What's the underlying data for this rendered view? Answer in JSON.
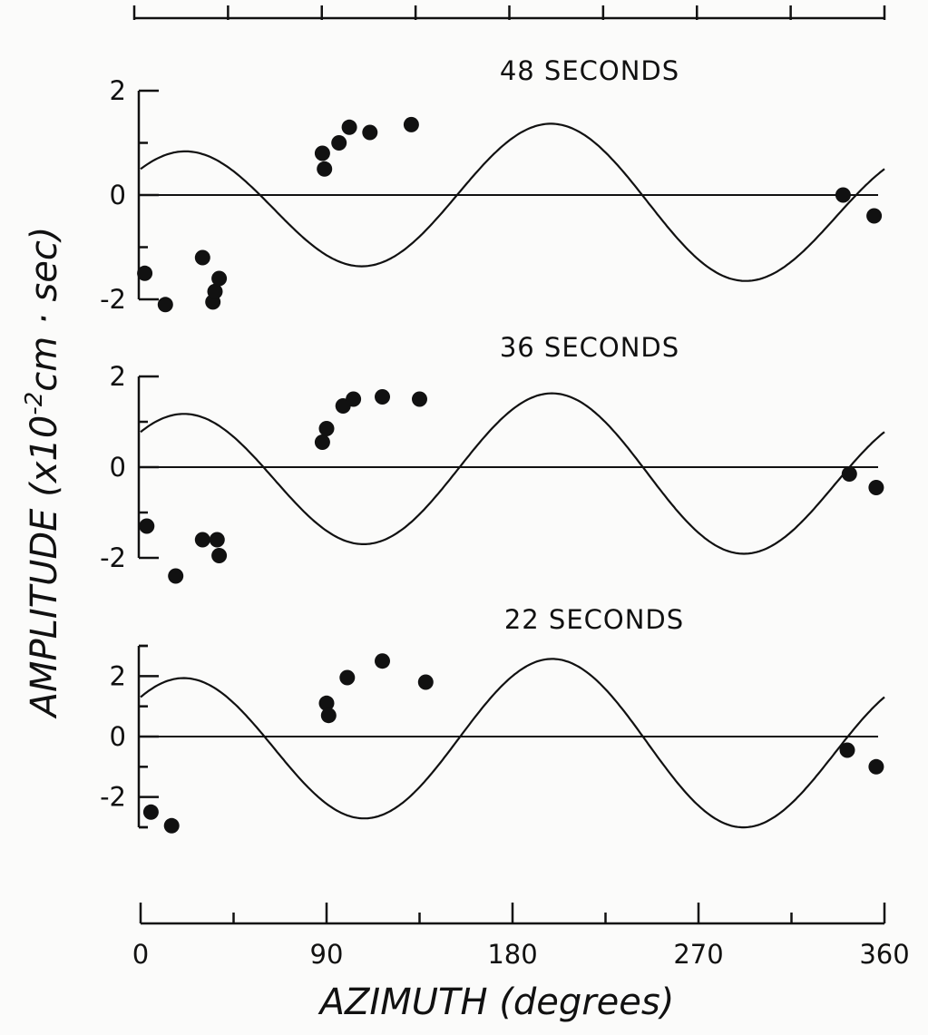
{
  "chart_data": [
    {
      "type": "scatter",
      "title": "48 SECONDS",
      "ylabel": "AMPLITUDE (x10^-2 cm · sec)",
      "xlabel": "AZIMUTH (degrees)",
      "xlim": [
        0,
        360
      ],
      "ylim": [
        -2,
        2
      ],
      "yticks": [
        "2",
        "0",
        "-2"
      ],
      "points": [
        [
          2,
          -1.5
        ],
        [
          12,
          -2.1
        ],
        [
          30,
          -1.2
        ],
        [
          35,
          -2.05
        ],
        [
          36,
          -1.85
        ],
        [
          38,
          -1.6
        ],
        [
          88,
          0.8
        ],
        [
          89,
          0.5
        ],
        [
          96,
          1.0
        ],
        [
          101,
          1.3
        ],
        [
          111,
          1.2
        ],
        [
          131,
          1.35
        ],
        [
          340,
          0.0
        ],
        [
          355,
          -0.4
        ]
      ],
      "fit_curve": {
        "mean": -0.2,
        "amplitude_1": 1.3,
        "phase_1_deg": 20,
        "amplitude_2": 0.3,
        "phase_2_deg": 82
      },
      "zero_line": true
    },
    {
      "type": "scatter",
      "title": "36 SECONDS",
      "xlim": [
        0,
        360
      ],
      "ylim": [
        -2,
        2
      ],
      "yticks": [
        "2",
        "0",
        "-2"
      ],
      "points": [
        [
          3,
          -1.3
        ],
        [
          17,
          -2.4
        ],
        [
          30,
          -1.6
        ],
        [
          37,
          -1.6
        ],
        [
          38,
          -1.95
        ],
        [
          88,
          0.55
        ],
        [
          90,
          0.85
        ],
        [
          98,
          1.35
        ],
        [
          103,
          1.5
        ],
        [
          117,
          1.55
        ],
        [
          135,
          1.5
        ],
        [
          343,
          -0.15
        ],
        [
          356,
          -0.45
        ]
      ],
      "fit_curve": {
        "mean": -0.2,
        "amplitude_1": 1.6,
        "phase_1_deg": 20,
        "amplitude_2": 0.25,
        "phase_2_deg": 85
      },
      "zero_line": true
    },
    {
      "type": "scatter",
      "title": "22 SECONDS",
      "xlim": [
        0,
        360
      ],
      "ylim": [
        -3,
        3
      ],
      "yticks": [
        "2",
        "0",
        "-2"
      ],
      "points": [
        [
          5,
          -2.5
        ],
        [
          15,
          -2.95
        ],
        [
          90,
          1.1
        ],
        [
          91,
          0.7
        ],
        [
          100,
          1.95
        ],
        [
          117,
          2.5
        ],
        [
          138,
          1.8
        ],
        [
          342,
          -0.45
        ],
        [
          356,
          -1.0
        ]
      ],
      "fit_curve": {
        "mean": -0.3,
        "amplitude_1": 2.55,
        "phase_1_deg": 20,
        "amplitude_2": 0.35,
        "phase_2_deg": 85
      },
      "zero_line": true
    }
  ],
  "x_axis": {
    "ticks": [
      "0",
      "90",
      "180",
      "270",
      "360"
    ],
    "label": "AZIMUTH (degrees)"
  },
  "y_axis": {
    "label": "AMPLITUDE (x10",
    "exponent": "-2",
    "label_rest": "cm · sec)"
  }
}
